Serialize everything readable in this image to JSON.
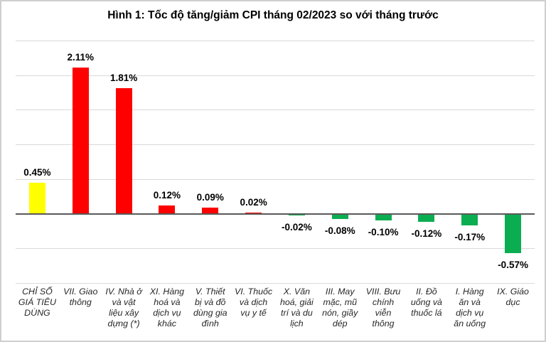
{
  "title": "Hình 1: Tốc độ tăng/giảm CPI tháng 02/2023 so với tháng trước",
  "chart_data": {
    "type": "bar",
    "title": "Hình 1: Tốc độ tăng/giảm CPI tháng 02/2023 so với tháng trước",
    "categories": [
      "CHỈ SỐ\nGIÁ TIÊU\nDÙNG",
      "VII. Giao\nthông",
      "IV. Nhà ở\nvà vật\nliệu xây\ndựng (*)",
      "XI. Hàng\nhoá và\ndịch vụ\nkhác",
      "V. Thiết\nbị và đồ\ndùng gia\nđình",
      "VI. Thuốc\nvà dịch\nvụ y tế",
      "X. Văn\nhoá, giải\ntrí và du\nlịch",
      "III. May\nmặc, mũ\nnón, giầy\ndép",
      "VIII. Bưu\nchính\nviễn\nthông",
      "II. Đồ\nuống và\nthuốc lá",
      "I. Hàng\năn và\ndịch vụ\năn uống",
      "IX. Giáo\ndục"
    ],
    "values": [
      0.45,
      2.11,
      1.81,
      0.12,
      0.09,
      0.02,
      -0.02,
      -0.08,
      -0.1,
      -0.12,
      -0.17,
      -0.57
    ],
    "value_labels": [
      "0.45%",
      "2.11%",
      "1.81%",
      "0.12%",
      "0.09%",
      "0.02%",
      "-0.02%",
      "-0.08%",
      "-0.10%",
      "-0.12%",
      "-0.17%",
      "-0.57%"
    ],
    "bar_colors": [
      "#FFFF00",
      "#FF0000",
      "#FF0000",
      "#FF0000",
      "#FF0000",
      "#FF0000",
      "#0BAD51",
      "#0BAD51",
      "#0BAD51",
      "#0BAD51",
      "#0BAD51",
      "#0BAD51"
    ],
    "ylim": [
      -1.0,
      2.5
    ],
    "grid_step": 0.5,
    "grid_on": true,
    "y_axis_tick_labels_visible": false,
    "legend": "none",
    "xlabel": "",
    "ylabel": "",
    "colors": {
      "increase": "#FF0000",
      "decrease": "#0BAD51",
      "overall_cpi": "#FFFF00",
      "grid": "#D9D9D9",
      "axis": "#595959",
      "value_label_text": "#000000",
      "category_text": "#262626"
    }
  }
}
